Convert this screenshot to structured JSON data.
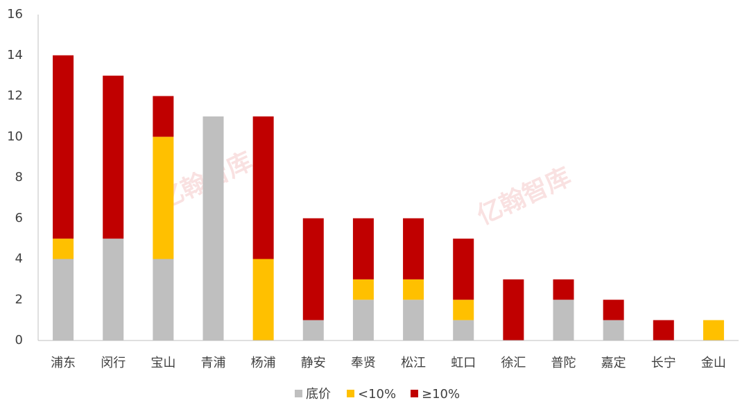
{
  "chart_data": {
    "type": "stacked_bar",
    "categories": [
      "浦东",
      "闵行",
      "宝山",
      "青浦",
      "杨浦",
      "静安",
      "奉贤",
      "松江",
      "虹口",
      "徐汇",
      "普陀",
      "嘉定",
      "长宁",
      "金山"
    ],
    "series": [
      {
        "name": "底价",
        "color": "#bfbfbf",
        "values": [
          4,
          5,
          4,
          11,
          0,
          1,
          2,
          2,
          1,
          0,
          2,
          1,
          0,
          0
        ]
      },
      {
        "name": "<10%",
        "color": "#ffc000",
        "values": [
          1,
          0,
          6,
          0,
          4,
          0,
          1,
          1,
          1,
          0,
          0,
          0,
          0,
          1
        ]
      },
      {
        "name": "≥10%",
        "color": "#c00000",
        "values": [
          9,
          8,
          2,
          0,
          7,
          5,
          3,
          3,
          3,
          3,
          1,
          1,
          1,
          0
        ]
      }
    ],
    "ylim": [
      0,
      16
    ],
    "yticks": [
      0,
      2,
      4,
      6,
      8,
      10,
      12,
      14,
      16
    ],
    "grid": false,
    "legend": "bottom",
    "watermark": "亿翰智库"
  }
}
